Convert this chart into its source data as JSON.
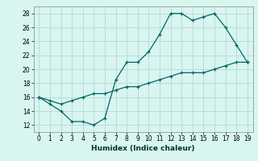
{
  "title": "",
  "xlabel": "Humidex (Indice chaleur)",
  "bg_color": "#d8f5f0",
  "grid_color": "#b8ddd8",
  "line_color": "#006666",
  "xlim": [
    -0.5,
    19.5
  ],
  "ylim": [
    11,
    29
  ],
  "yticks": [
    12,
    14,
    16,
    18,
    20,
    22,
    24,
    26,
    28
  ],
  "xticks": [
    0,
    1,
    2,
    3,
    4,
    5,
    6,
    7,
    8,
    9,
    10,
    11,
    12,
    13,
    14,
    15,
    16,
    17,
    18,
    19
  ],
  "line1_x": [
    0,
    1,
    2,
    3,
    4,
    5,
    6,
    7,
    8,
    9,
    10,
    11,
    12,
    13,
    14,
    15,
    16,
    17,
    18,
    19
  ],
  "line1_y": [
    16,
    15,
    14,
    12.5,
    12.5,
    12,
    13,
    18.5,
    21,
    21,
    22.5,
    25,
    28,
    28,
    27,
    27.5,
    28,
    26,
    23.5,
    21
  ],
  "line2_x": [
    0,
    1,
    2,
    3,
    4,
    5,
    6,
    7,
    8,
    9,
    10,
    11,
    12,
    13,
    14,
    15,
    16,
    17,
    18,
    19
  ],
  "line2_y": [
    16,
    15.5,
    15,
    15.5,
    16,
    16.5,
    16.5,
    17,
    17.5,
    17.5,
    18,
    18.5,
    19,
    19.5,
    19.5,
    19.5,
    20,
    20.5,
    21,
    21
  ]
}
